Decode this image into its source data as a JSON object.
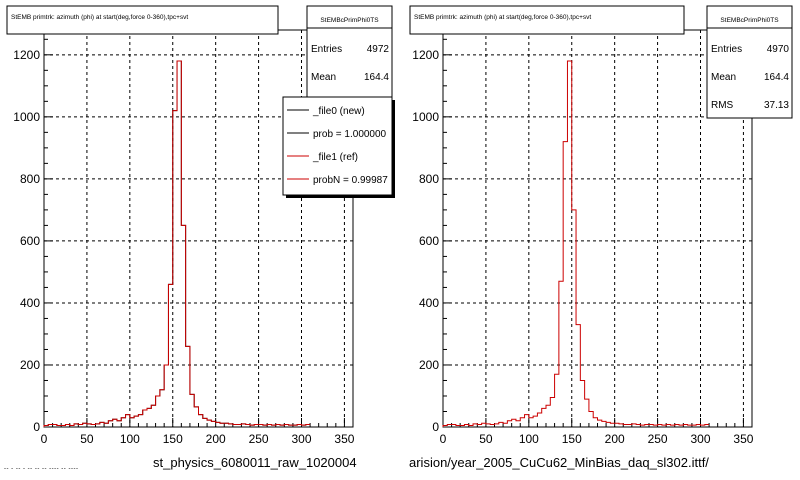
{
  "colors": {
    "background": "#ffffff",
    "axes": "#000000",
    "grid": "#000000",
    "new_line": "#000000",
    "ref_line": "#cc0000"
  },
  "captions": {
    "left": "st_physics_6080011_raw_1020004",
    "right": "arision/year_2005_CuCu62_MinBias_daq_sl302.ittf/",
    "footnote": "-- - -- - -- -- -- ---- -- ----"
  },
  "chart_data": [
    {
      "type": "histogram",
      "title": "StEMB primtrk: azimuth (phi) at start(deg,force 0-360),tpc+svt",
      "xlabel": "",
      "ylabel": "",
      "xlim": [
        0,
        360
      ],
      "ylim": [
        0,
        1280
      ],
      "xticks": [
        0,
        50,
        100,
        150,
        200,
        250,
        300,
        350
      ],
      "yticks": [
        0,
        200,
        400,
        600,
        800,
        1000,
        1200
      ],
      "grid": true,
      "bin_width": 5,
      "series": [
        {
          "name": "_file0 (new)",
          "color": "#000000",
          "values": [
            5,
            8,
            8,
            5,
            5,
            8,
            5,
            10,
            8,
            12,
            10,
            8,
            10,
            15,
            12,
            20,
            25,
            20,
            30,
            40,
            30,
            35,
            40,
            55,
            60,
            70,
            100,
            120,
            200,
            460,
            1020,
            1180,
            650,
            260,
            105,
            65,
            40,
            28,
            22,
            18,
            15,
            12,
            12,
            10,
            8,
            8,
            10,
            8,
            6,
            8,
            8,
            6,
            8,
            6,
            8,
            6,
            8,
            6,
            6,
            8,
            6,
            8
          ]
        },
        {
          "name": "_file1 (ref)",
          "color": "#cc0000",
          "values": [
            5,
            8,
            8,
            5,
            5,
            8,
            5,
            10,
            8,
            12,
            10,
            8,
            10,
            15,
            12,
            20,
            25,
            20,
            30,
            40,
            30,
            35,
            40,
            55,
            60,
            70,
            100,
            120,
            200,
            460,
            1020,
            1180,
            650,
            260,
            105,
            65,
            40,
            28,
            22,
            18,
            15,
            12,
            12,
            10,
            8,
            8,
            10,
            8,
            6,
            8,
            8,
            6,
            8,
            6,
            8,
            6,
            8,
            6,
            6,
            8,
            6,
            8
          ]
        }
      ],
      "stats": {
        "name": "StEMBcPrimPhi0TS",
        "entries_label": "Entries",
        "entries": "4972",
        "mean_label": "Mean",
        "mean": "164.4"
      },
      "legend": [
        {
          "label": "_file0 (new)",
          "color": "#000000"
        },
        {
          "label": "prob = 1.000000",
          "color": "#000000"
        },
        {
          "label": "_file1 (ref)",
          "color": "#cc0000"
        },
        {
          "label": "probN = 0.99987",
          "color": "#cc0000"
        }
      ]
    },
    {
      "type": "histogram",
      "title": "StEMB primtrk: azimuth (phi) at start(deg,force 0-360),tpc+svt",
      "xlabel": "",
      "ylabel": "",
      "xlim": [
        0,
        360
      ],
      "ylim": [
        0,
        1280
      ],
      "xticks": [
        0,
        50,
        100,
        150,
        200,
        250,
        300,
        350
      ],
      "yticks": [
        0,
        200,
        400,
        600,
        800,
        1000,
        1200
      ],
      "grid": true,
      "bin_width": 5,
      "series": [
        {
          "name": "",
          "color": "#cc0000",
          "values": [
            5,
            8,
            8,
            5,
            5,
            8,
            5,
            10,
            8,
            12,
            10,
            8,
            10,
            15,
            12,
            20,
            25,
            20,
            30,
            40,
            30,
            35,
            45,
            60,
            70,
            95,
            170,
            470,
            920,
            1180,
            700,
            330,
            150,
            90,
            50,
            30,
            22,
            18,
            15,
            12,
            12,
            10,
            8,
            8,
            10,
            8,
            6,
            8,
            8,
            6,
            8,
            6,
            8,
            6,
            8,
            6,
            8,
            6,
            6,
            8,
            6,
            8
          ]
        }
      ],
      "stats": {
        "name": "StEMBcPrimPhi0TS",
        "entries_label": "Entries",
        "entries": "4970",
        "mean_label": "Mean",
        "mean": "164.4",
        "rms_label": "RMS",
        "rms": "37.13"
      },
      "legend": []
    }
  ]
}
